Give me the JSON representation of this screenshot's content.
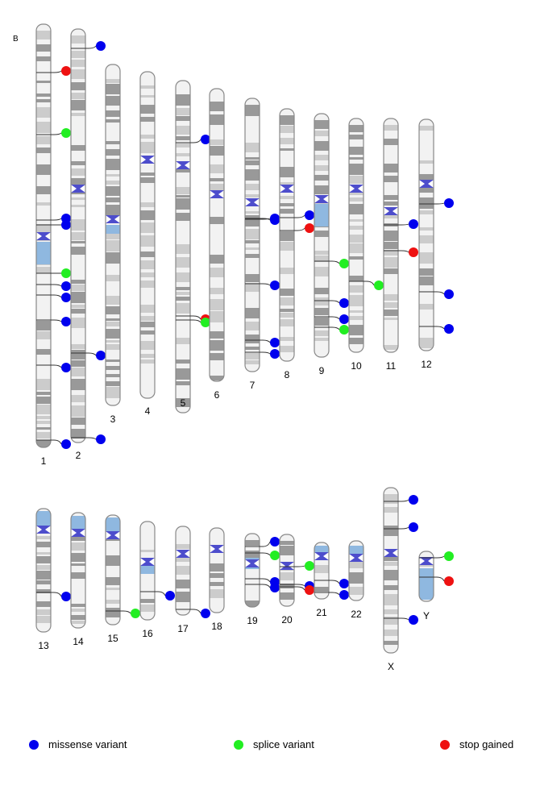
{
  "panel_label": "B",
  "variant_types": {
    "missense": {
      "label": "missense variant",
      "color": "#0000ee"
    },
    "splice": {
      "label": "splice variant",
      "color": "#22ee22"
    },
    "stop": {
      "label": "stop gained",
      "color": "#ee1111"
    }
  },
  "band_colors": {
    "light": "#f2f2f2",
    "mid": "#cccccc",
    "dark": "#999999",
    "hetero": "#8fb8e0",
    "centromere": "#4d4dcc",
    "outline": "#888888"
  },
  "chromosomes": [
    {
      "name": "1",
      "variants": [
        "stop",
        "splice",
        "missense",
        "missense",
        "splice",
        "missense",
        "missense",
        "missense",
        "missense",
        "missense"
      ]
    },
    {
      "name": "2",
      "variants": [
        "missense",
        "missense",
        "missense"
      ]
    },
    {
      "name": "3",
      "variants": []
    },
    {
      "name": "4",
      "variants": []
    },
    {
      "name": "5",
      "variants": [
        "missense",
        "stop",
        "splice"
      ]
    },
    {
      "name": "6",
      "variants": []
    },
    {
      "name": "7",
      "variants": [
        "missense",
        "missense",
        "missense",
        "missense",
        "missense"
      ]
    },
    {
      "name": "8",
      "variants": [
        "missense",
        "stop"
      ]
    },
    {
      "name": "9",
      "variants": [
        "splice",
        "missense",
        "missense",
        "splice"
      ]
    },
    {
      "name": "10",
      "variants": [
        "splice"
      ]
    },
    {
      "name": "11",
      "variants": [
        "missense",
        "stop"
      ]
    },
    {
      "name": "12",
      "variants": [
        "missense",
        "missense",
        "missense"
      ]
    },
    {
      "name": "13",
      "variants": [
        "missense"
      ]
    },
    {
      "name": "14",
      "variants": []
    },
    {
      "name": "15",
      "variants": [
        "splice"
      ]
    },
    {
      "name": "16",
      "variants": [
        "missense"
      ]
    },
    {
      "name": "17",
      "variants": [
        "missense"
      ]
    },
    {
      "name": "18",
      "variants": []
    },
    {
      "name": "19",
      "variants": [
        "missense",
        "splice",
        "missense",
        "missense"
      ]
    },
    {
      "name": "20",
      "variants": [
        "splice",
        "missense",
        "stop"
      ]
    },
    {
      "name": "21",
      "variants": [
        "missense",
        "missense"
      ]
    },
    {
      "name": "22",
      "variants": []
    },
    {
      "name": "X",
      "variants": [
        "missense",
        "missense",
        "missense"
      ]
    },
    {
      "name": "Y",
      "variants": [
        "splice",
        "stop"
      ]
    }
  ],
  "legend": [
    {
      "type": "missense",
      "label": "missense variant"
    },
    {
      "type": "splice",
      "label": "splice variant"
    },
    {
      "type": "stop",
      "label": "stop gained"
    }
  ]
}
